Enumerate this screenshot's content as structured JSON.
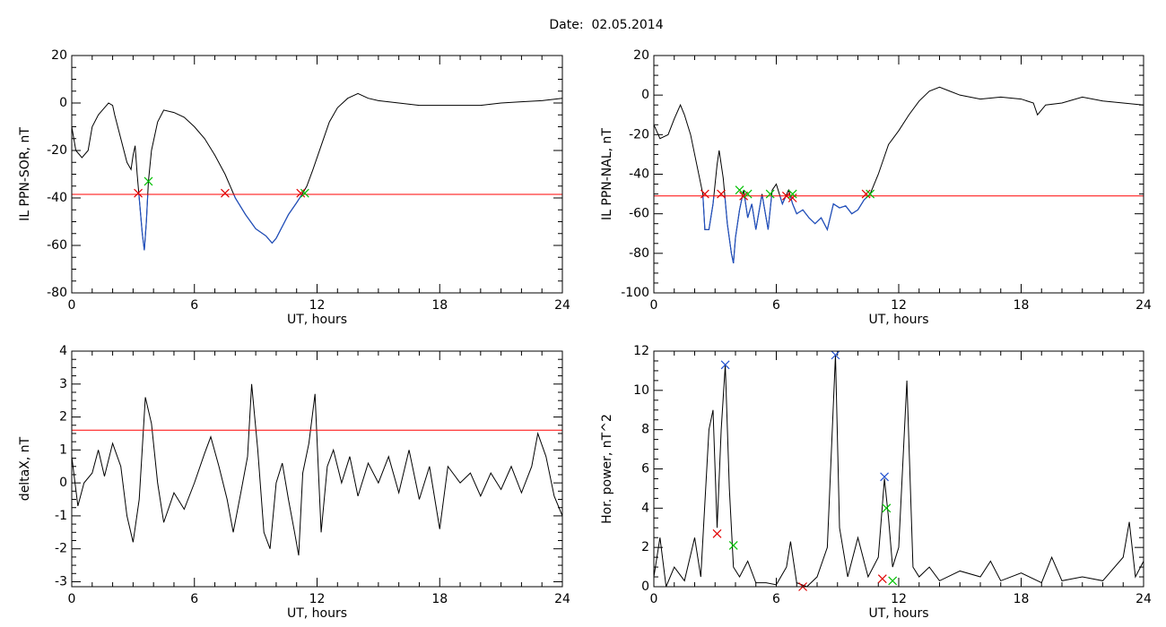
{
  "title": "Date:  02.05.2014",
  "chart_data": [
    {
      "type": "line",
      "xlabel": "UT, hours",
      "ylabel": "IL PPN-SOR, nT",
      "xlim": [
        0,
        24
      ],
      "xticks": [
        0,
        6,
        12,
        18,
        24
      ],
      "ylim": [
        -80,
        20
      ],
      "yticks": [
        20,
        0,
        -20,
        -40,
        -60,
        -80
      ],
      "threshold": {
        "value": -38.5,
        "color": "#ff0000"
      },
      "below_color": "#1f4fc0",
      "series": [
        {
          "color": "#000000",
          "x": [
            0,
            0.2,
            0.5,
            0.8,
            1.0,
            1.3,
            1.5,
            1.7,
            1.8,
            2.0,
            2.1,
            2.4,
            2.7,
            2.9,
            3.0,
            3.1,
            3.2,
            3.3,
            3.45,
            3.55,
            3.65,
            3.75,
            3.9,
            4.2,
            4.5,
            5.0,
            5.5,
            6.0,
            6.5,
            7.0,
            7.5,
            8.0,
            8.5,
            9.0,
            9.5,
            9.8,
            10.0,
            10.3,
            10.6,
            11.0,
            11.3,
            11.5,
            11.8,
            12.2,
            12.6,
            13.0,
            13.5,
            14.0,
            14.5,
            15.0,
            16,
            17,
            18,
            19,
            20,
            21,
            22,
            23,
            24
          ],
          "values": [
            -10,
            -20,
            -23,
            -20,
            -10,
            -5,
            -3,
            -1,
            0,
            -1,
            -5,
            -15,
            -25,
            -28,
            -22,
            -18,
            -30,
            -40,
            -55,
            -62,
            -50,
            -33,
            -20,
            -8,
            -3,
            -4,
            -6,
            -10,
            -15,
            -22,
            -30,
            -40,
            -47,
            -53,
            -56,
            -59,
            -57,
            -52,
            -47,
            -42,
            -38,
            -35,
            -28,
            -18,
            -8,
            -2,
            2,
            4,
            2,
            1,
            0,
            -1,
            -1,
            -1,
            -1,
            0,
            0.5,
            1,
            2
          ]
        }
      ],
      "markers": [
        {
          "color": "#e00000",
          "x": [
            3.25,
            7.5,
            11.2
          ],
          "values": [
            -38,
            -38,
            -38
          ]
        },
        {
          "color": "#00c000",
          "x": [
            3.75,
            11.4
          ],
          "values": [
            -33,
            -38
          ]
        }
      ]
    },
    {
      "type": "line",
      "xlabel": "UT, hours",
      "ylabel": "IL PPN-NAL, nT",
      "xlim": [
        0,
        24
      ],
      "xticks": [
        0,
        6,
        12,
        18,
        24
      ],
      "ylim": [
        -100,
        20
      ],
      "yticks": [
        20,
        0,
        -20,
        -40,
        -60,
        -80,
        -100
      ],
      "threshold": {
        "value": -51,
        "color": "#ff0000"
      },
      "below_color": "#1f4fc0",
      "series": [
        {
          "color": "#000000",
          "x": [
            0,
            0.3,
            0.7,
            1.0,
            1.3,
            1.5,
            1.8,
            2.1,
            2.4,
            2.5,
            2.7,
            2.9,
            3.1,
            3.2,
            3.4,
            3.6,
            3.8,
            3.9,
            4.0,
            4.2,
            4.4,
            4.6,
            4.8,
            5.0,
            5.3,
            5.6,
            5.8,
            6.0,
            6.3,
            6.6,
            6.8,
            7.0,
            7.3,
            7.6,
            7.9,
            8.2,
            8.5,
            8.8,
            9.1,
            9.4,
            9.7,
            10.0,
            10.3,
            10.6,
            11.0,
            11.5,
            12.0,
            12.5,
            13.0,
            13.5,
            14.0,
            14.5,
            15.0,
            16,
            17,
            18,
            18.6,
            18.8,
            19.2,
            20,
            21,
            22,
            23,
            24
          ],
          "values": [
            -15,
            -22,
            -20,
            -12,
            -5,
            -10,
            -20,
            -35,
            -50,
            -68,
            -68,
            -55,
            -35,
            -28,
            -42,
            -65,
            -80,
            -85,
            -72,
            -58,
            -48,
            -62,
            -55,
            -68,
            -50,
            -68,
            -48,
            -45,
            -55,
            -48,
            -55,
            -60,
            -58,
            -62,
            -65,
            -62,
            -68,
            -55,
            -57,
            -56,
            -60,
            -58,
            -53,
            -50,
            -40,
            -25,
            -18,
            -10,
            -3,
            2,
            4,
            2,
            0,
            -2,
            -1,
            -2,
            -4,
            -10,
            -5,
            -4,
            -1,
            -3,
            -4,
            -5
          ]
        }
      ],
      "markers": [
        {
          "color": "#e00000",
          "x": [
            2.5,
            3.3,
            4.4,
            6.5,
            6.8,
            10.4
          ],
          "values": [
            -50,
            -50,
            -51,
            -51,
            -52,
            -50
          ]
        },
        {
          "color": "#00c000",
          "x": [
            4.2,
            4.6,
            5.7,
            6.8,
            10.6
          ],
          "values": [
            -48,
            -50,
            -50,
            -50,
            -50
          ]
        }
      ]
    },
    {
      "type": "line",
      "xlabel": "UT, hours",
      "ylabel": "deltaX, nT",
      "xlim": [
        0,
        24
      ],
      "xticks": [
        0,
        6,
        12,
        18,
        24
      ],
      "ylim": [
        -3.15,
        4
      ],
      "yticks": [
        4,
        3,
        2,
        1,
        0,
        -1,
        -2,
        -3
      ],
      "threshold": {
        "value": 1.6,
        "color": "#ff0000"
      },
      "series": [
        {
          "color": "#000000",
          "x": [
            0,
            0.3,
            0.6,
            1,
            1.3,
            1.6,
            2,
            2.4,
            2.7,
            3.0,
            3.3,
            3.6,
            3.9,
            4.2,
            4.5,
            5,
            5.5,
            6,
            6.5,
            6.8,
            7.2,
            7.6,
            7.9,
            8.3,
            8.6,
            8.8,
            9.1,
            9.4,
            9.7,
            10,
            10.3,
            10.6,
            10.9,
            11.1,
            11.3,
            11.6,
            11.9,
            12.2,
            12.5,
            12.8,
            13.2,
            13.6,
            14,
            14.5,
            15,
            15.5,
            16,
            16.5,
            17,
            17.5,
            18,
            18.4,
            19,
            19.5,
            20,
            20.5,
            21,
            21.5,
            22,
            22.5,
            22.8,
            23.2,
            23.6,
            24
          ],
          "values": [
            0.8,
            -0.7,
            0,
            0.3,
            1.0,
            0.2,
            1.2,
            0.5,
            -1.0,
            -1.8,
            -0.5,
            2.6,
            1.8,
            0,
            -1.2,
            -0.3,
            -0.8,
            0,
            0.9,
            1.4,
            0.5,
            -0.5,
            -1.5,
            -0.2,
            0.8,
            3.0,
            1.0,
            -1.5,
            -2.0,
            0,
            0.6,
            -0.5,
            -1.5,
            -2.2,
            0.3,
            1.2,
            2.7,
            -1.5,
            0.5,
            1.0,
            0,
            0.8,
            -0.4,
            0.6,
            0,
            0.8,
            -0.3,
            1.0,
            -0.5,
            0.5,
            -1.4,
            0.5,
            0,
            0.3,
            -0.4,
            0.3,
            -0.2,
            0.5,
            -0.3,
            0.5,
            1.5,
            0.8,
            -0.4,
            -1.0
          ]
        }
      ]
    },
    {
      "type": "line",
      "xlabel": "UT, hours",
      "ylabel": "Hor. power, nT^2",
      "xlim": [
        0,
        24
      ],
      "xticks": [
        0,
        6,
        12,
        18,
        24
      ],
      "ylim": [
        0,
        12
      ],
      "yticks": [
        12,
        10,
        8,
        6,
        4,
        2,
        0
      ],
      "series": [
        {
          "color": "#000000",
          "x": [
            0,
            0.3,
            0.6,
            1,
            1.5,
            2,
            2.3,
            2.7,
            2.9,
            3.1,
            3.3,
            3.5,
            3.7,
            3.9,
            4.2,
            4.6,
            5,
            5.5,
            6,
            6.5,
            6.7,
            7,
            7.5,
            8,
            8.5,
            8.9,
            9.1,
            9.5,
            10,
            10.5,
            11,
            11.3,
            11.5,
            11.7,
            12,
            12.4,
            12.7,
            13,
            13.5,
            14,
            15,
            16,
            16.5,
            17,
            18,
            19,
            19.5,
            20,
            21,
            22,
            23,
            23.3,
            23.6,
            24
          ],
          "values": [
            0.5,
            2.5,
            0,
            1,
            0.3,
            2.5,
            0.5,
            8,
            9,
            3,
            8,
            11.3,
            5,
            1,
            0.5,
            1.3,
            0.2,
            0.2,
            0.1,
            1,
            2.3,
            0.2,
            0,
            0.5,
            2,
            11.8,
            3,
            0.5,
            2.5,
            0.5,
            1.5,
            5.5,
            3.5,
            1,
            2,
            10.5,
            1,
            0.5,
            1,
            0.3,
            0.8,
            0.5,
            1.3,
            0.3,
            0.7,
            0.2,
            1.5,
            0.3,
            0.5,
            0.3,
            1.5,
            3.3,
            0.5,
            1.3
          ]
        }
      ],
      "markers": [
        {
          "color": "#2050d0",
          "x": [
            3.5,
            8.9,
            11.3
          ],
          "values": [
            11.3,
            11.8,
            5.6
          ]
        },
        {
          "color": "#e00000",
          "x": [
            3.1,
            7.3,
            11.2
          ],
          "values": [
            2.7,
            0,
            0.4
          ]
        },
        {
          "color": "#00c000",
          "x": [
            3.9,
            11.4,
            11.7
          ],
          "values": [
            2.1,
            4.0,
            0.3
          ]
        }
      ]
    }
  ]
}
